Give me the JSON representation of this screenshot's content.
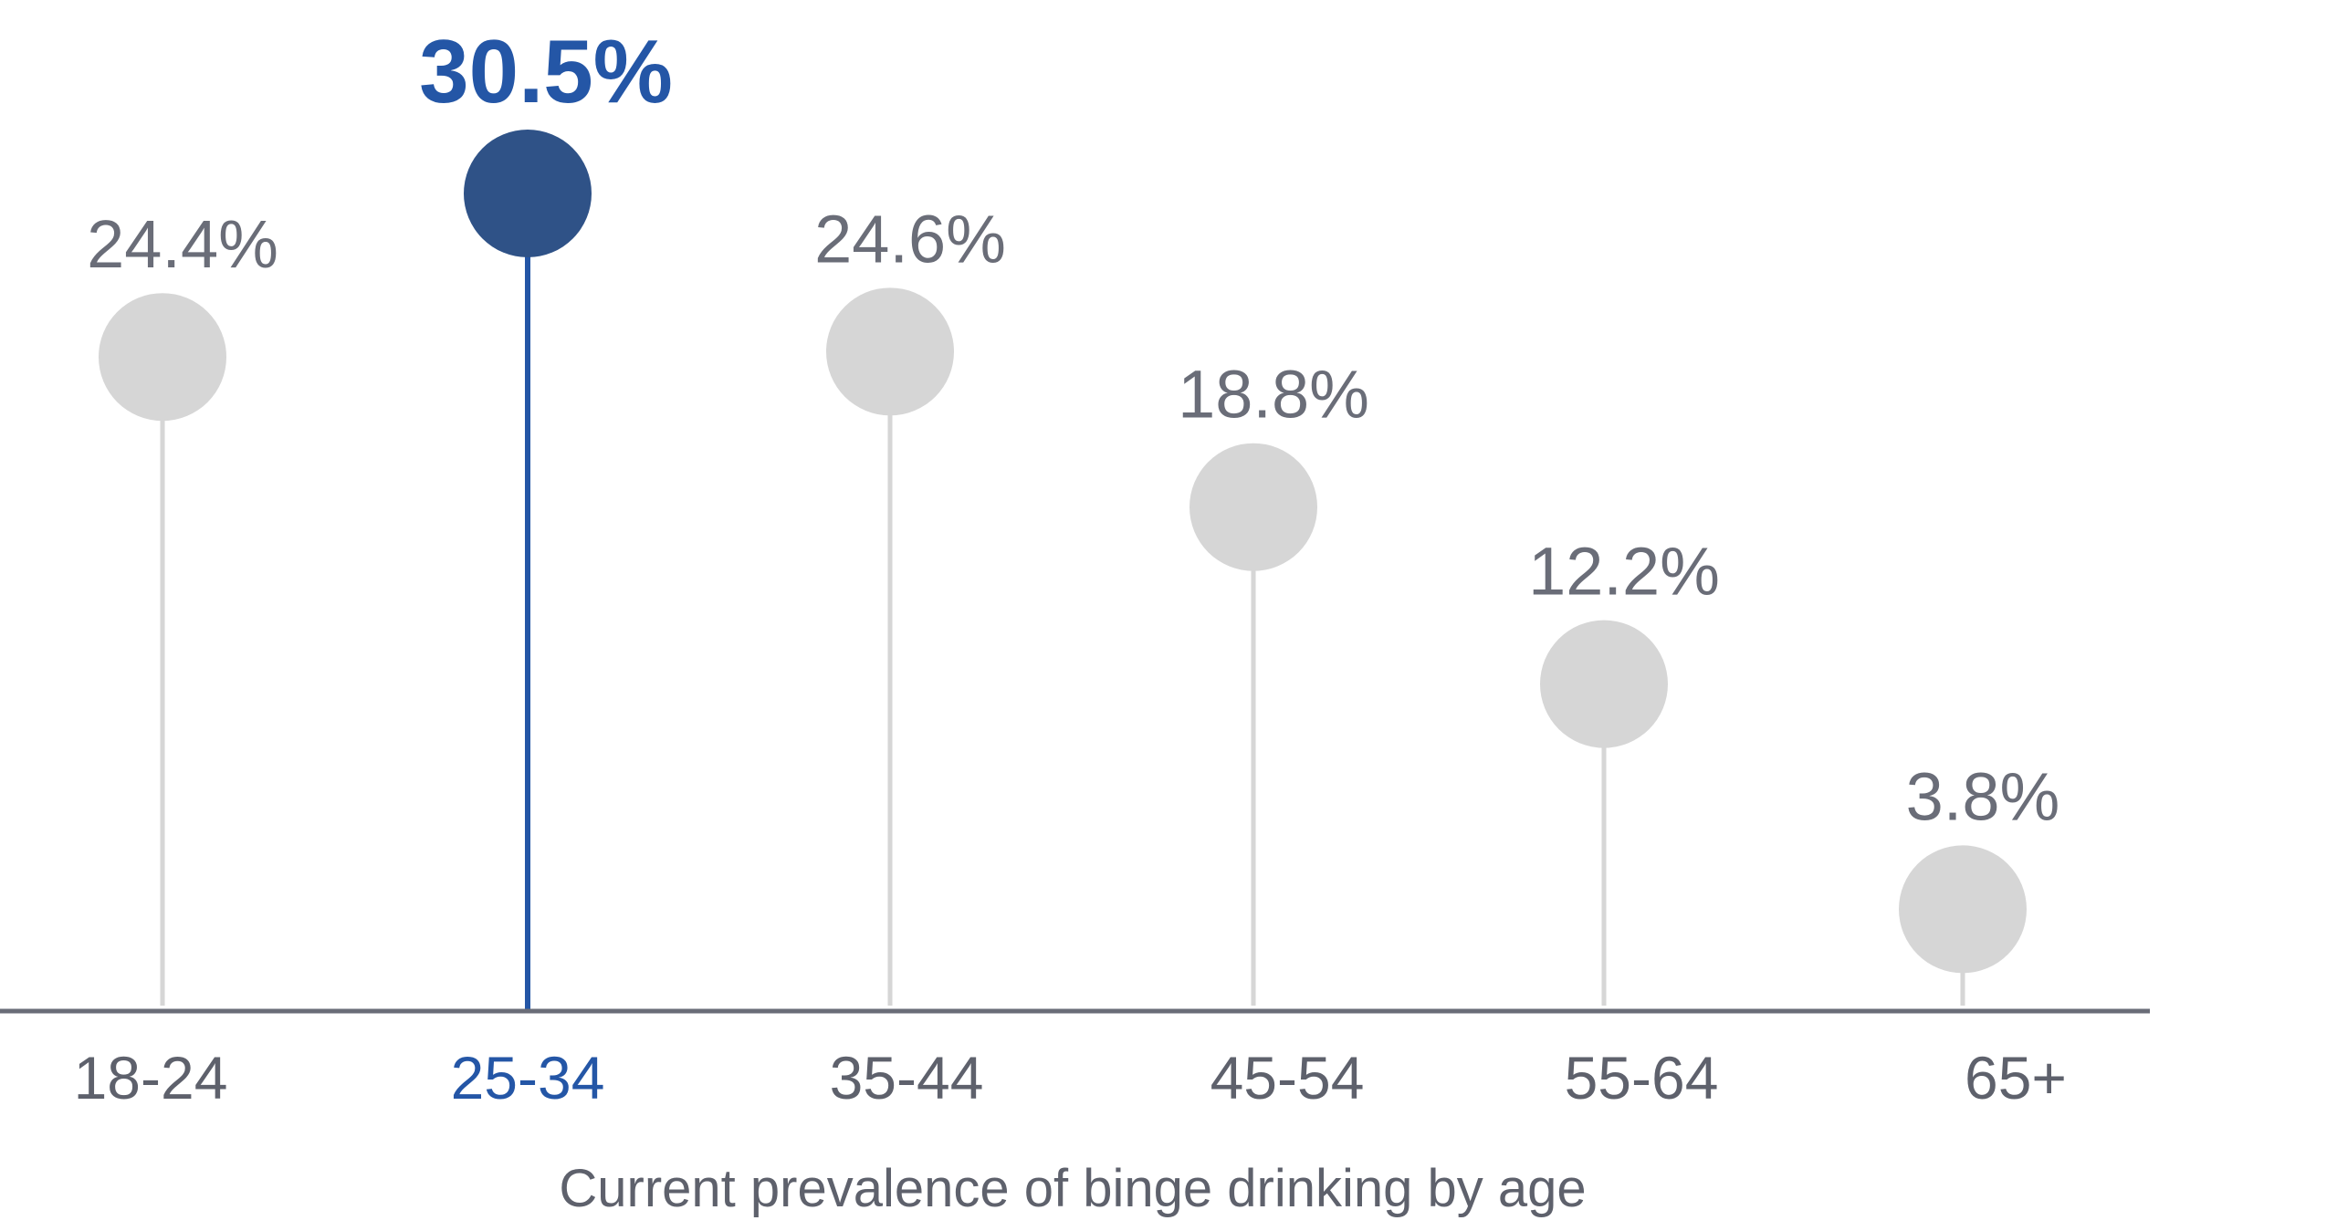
{
  "chart_data": {
    "type": "lollipop",
    "categories": [
      "18-24",
      "25-34",
      "35-44",
      "45-54",
      "55-64",
      "65+"
    ],
    "values": [
      24.4,
      30.5,
      24.6,
      18.8,
      12.2,
      3.8
    ],
    "value_labels": [
      "24.4%",
      "30.5%",
      "24.6%",
      "18.8%",
      "12.2%",
      "3.8%"
    ],
    "highlight_index": 1,
    "xlabel": "Current prevalence of binge drinking by age",
    "ylim": [
      0,
      33
    ],
    "grid": false,
    "legend": "none",
    "colors": {
      "base": "#d6d6d6",
      "highlight": "#2f5287",
      "highlight_text": "#2456a6",
      "axis": "#6a6d78",
      "text": "#6a6d78"
    }
  }
}
